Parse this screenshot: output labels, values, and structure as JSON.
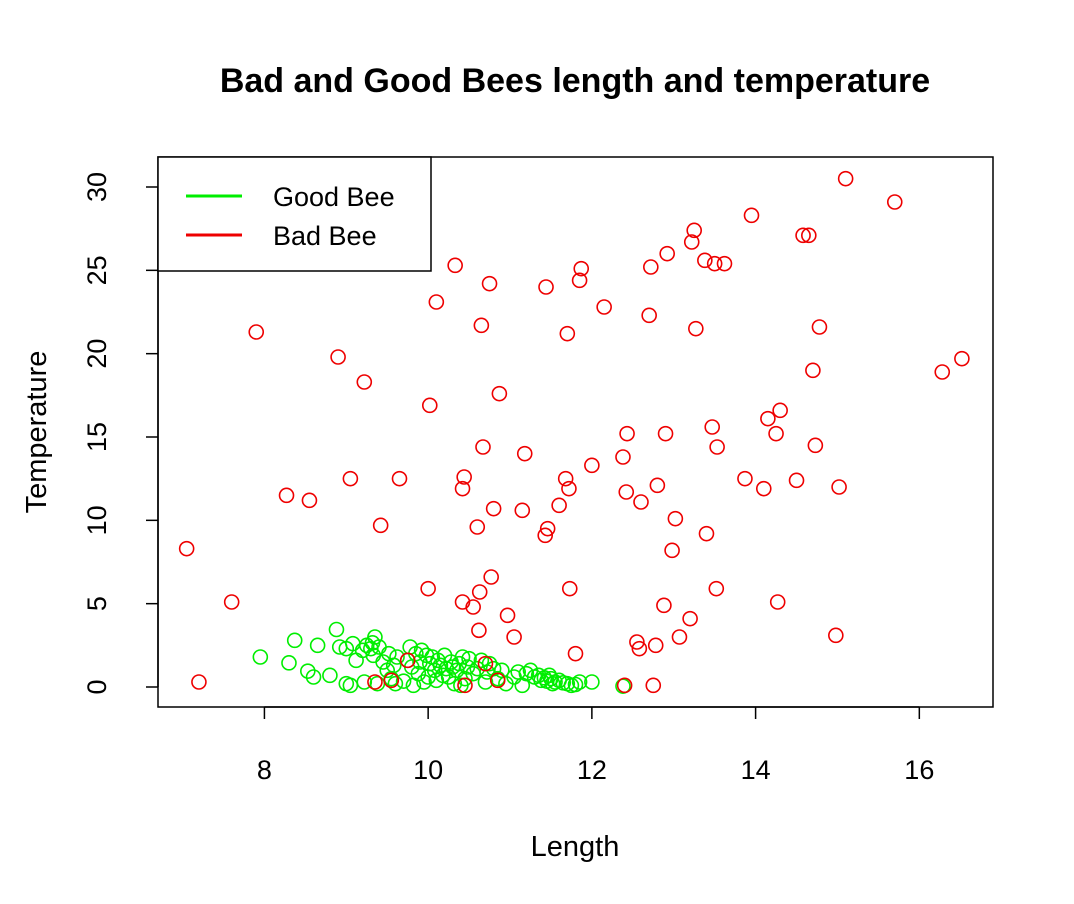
{
  "chart_data": {
    "type": "scatter",
    "title": "Bad and Good Bees length and temperature",
    "xlabel": "Length",
    "ylabel": "Temperature",
    "xlim": [
      6.7,
      16.9
    ],
    "ylim": [
      -1.2,
      31.8
    ],
    "xticks": [
      8,
      10,
      12,
      14,
      16
    ],
    "yticks": [
      0,
      5,
      10,
      15,
      20,
      25,
      30
    ],
    "grid": false,
    "legend_position": "top-left",
    "series": [
      {
        "name": "Good Bee",
        "color": "#00ee00",
        "points": [
          [
            7.95,
            1.8
          ],
          [
            8.3,
            1.45
          ],
          [
            8.37,
            2.8
          ],
          [
            8.53,
            0.95
          ],
          [
            8.6,
            0.6
          ],
          [
            8.65,
            2.5
          ],
          [
            8.8,
            0.7
          ],
          [
            8.88,
            3.45
          ],
          [
            8.92,
            2.4
          ],
          [
            9.0,
            2.3
          ],
          [
            9.0,
            0.2
          ],
          [
            9.05,
            0.1
          ],
          [
            9.08,
            2.6
          ],
          [
            9.12,
            1.6
          ],
          [
            9.2,
            2.2
          ],
          [
            9.22,
            0.3
          ],
          [
            9.25,
            2.5
          ],
          [
            9.3,
            2.3
          ],
          [
            9.32,
            2.65
          ],
          [
            9.33,
            1.9
          ],
          [
            9.35,
            3.0
          ],
          [
            9.38,
            0.2
          ],
          [
            9.4,
            2.4
          ],
          [
            9.45,
            1.5
          ],
          [
            9.5,
            1.0
          ],
          [
            9.52,
            2.0
          ],
          [
            9.55,
            0.5
          ],
          [
            9.58,
            1.3
          ],
          [
            9.6,
            0.2
          ],
          [
            9.62,
            1.8
          ],
          [
            9.7,
            0.35
          ],
          [
            9.75,
            1.6
          ],
          [
            9.78,
            2.4
          ],
          [
            9.8,
            1.2
          ],
          [
            9.82,
            0.1
          ],
          [
            9.85,
            2.0
          ],
          [
            9.88,
            0.8
          ],
          [
            9.9,
            1.5
          ],
          [
            9.92,
            2.2
          ],
          [
            9.95,
            0.3
          ],
          [
            9.98,
            1.9
          ],
          [
            10.0,
            0.6
          ],
          [
            10.02,
            1.4
          ],
          [
            10.05,
            1.8
          ],
          [
            10.08,
            1.0
          ],
          [
            10.1,
            0.4
          ],
          [
            10.12,
            1.6
          ],
          [
            10.15,
            1.3
          ],
          [
            10.18,
            0.7
          ],
          [
            10.2,
            1.9
          ],
          [
            10.22,
            1.1
          ],
          [
            10.25,
            0.6
          ],
          [
            10.28,
            1.5
          ],
          [
            10.3,
            1.2
          ],
          [
            10.32,
            0.2
          ],
          [
            10.35,
            1.0
          ],
          [
            10.38,
            1.4
          ],
          [
            10.4,
            0.1
          ],
          [
            10.42,
            1.8
          ],
          [
            10.45,
            0.5
          ],
          [
            10.48,
            1.2
          ],
          [
            10.5,
            1.7
          ],
          [
            10.55,
            0.8
          ],
          [
            10.6,
            1.1
          ],
          [
            10.65,
            1.6
          ],
          [
            10.7,
            0.3
          ],
          [
            10.72,
            0.9
          ],
          [
            10.75,
            1.4
          ],
          [
            10.8,
            1.1
          ],
          [
            10.85,
            0.5
          ],
          [
            10.9,
            1.0
          ],
          [
            10.95,
            0.2
          ],
          [
            11.05,
            0.6
          ],
          [
            11.1,
            0.9
          ],
          [
            11.15,
            0.1
          ],
          [
            11.2,
            0.8
          ],
          [
            11.25,
            1.0
          ],
          [
            11.3,
            0.6
          ],
          [
            11.35,
            0.7
          ],
          [
            11.38,
            0.4
          ],
          [
            11.42,
            0.55
          ],
          [
            11.45,
            0.35
          ],
          [
            11.48,
            0.7
          ],
          [
            11.5,
            0.5
          ],
          [
            11.52,
            0.2
          ],
          [
            11.55,
            0.3
          ],
          [
            11.6,
            0.4
          ],
          [
            11.65,
            0.25
          ],
          [
            11.7,
            0.2
          ],
          [
            11.75,
            0.1
          ],
          [
            11.8,
            0.15
          ],
          [
            11.85,
            0.3
          ],
          [
            12.0,
            0.3
          ],
          [
            12.38,
            0.05
          ]
        ]
      },
      {
        "name": "Bad Bee",
        "color": "#ee0000",
        "points": [
          [
            7.05,
            8.3
          ],
          [
            7.2,
            0.3
          ],
          [
            7.6,
            5.1
          ],
          [
            7.9,
            21.3
          ],
          [
            8.27,
            11.5
          ],
          [
            8.55,
            11.2
          ],
          [
            8.9,
            19.8
          ],
          [
            9.05,
            12.5
          ],
          [
            9.22,
            18.3
          ],
          [
            9.35,
            0.3
          ],
          [
            9.42,
            9.7
          ],
          [
            9.55,
            0.4
          ],
          [
            9.65,
            12.5
          ],
          [
            9.75,
            1.6
          ],
          [
            10.0,
            5.9
          ],
          [
            10.02,
            16.9
          ],
          [
            10.1,
            23.1
          ],
          [
            10.33,
            25.3
          ],
          [
            10.42,
            5.1
          ],
          [
            10.42,
            11.9
          ],
          [
            10.44,
            12.6
          ],
          [
            10.45,
            0.1
          ],
          [
            10.55,
            4.8
          ],
          [
            10.6,
            9.6
          ],
          [
            10.62,
            3.4
          ],
          [
            10.63,
            5.7
          ],
          [
            10.65,
            21.7
          ],
          [
            10.67,
            14.4
          ],
          [
            10.7,
            1.4
          ],
          [
            10.75,
            24.2
          ],
          [
            10.77,
            6.6
          ],
          [
            10.8,
            10.7
          ],
          [
            10.85,
            0.4
          ],
          [
            10.87,
            17.6
          ],
          [
            10.97,
            4.3
          ],
          [
            11.05,
            3.0
          ],
          [
            11.15,
            10.6
          ],
          [
            11.18,
            14.0
          ],
          [
            11.43,
            9.1
          ],
          [
            11.44,
            24.0
          ],
          [
            11.46,
            9.5
          ],
          [
            11.6,
            10.9
          ],
          [
            11.68,
            12.5
          ],
          [
            11.7,
            21.2
          ],
          [
            11.72,
            11.9
          ],
          [
            11.73,
            5.9
          ],
          [
            11.8,
            2.0
          ],
          [
            11.85,
            24.4
          ],
          [
            11.87,
            25.1
          ],
          [
            12.0,
            13.3
          ],
          [
            12.15,
            22.8
          ],
          [
            12.38,
            13.8
          ],
          [
            12.4,
            0.1
          ],
          [
            12.42,
            11.7
          ],
          [
            12.43,
            15.2
          ],
          [
            12.55,
            2.7
          ],
          [
            12.58,
            2.3
          ],
          [
            12.6,
            11.1
          ],
          [
            12.7,
            22.3
          ],
          [
            12.72,
            25.2
          ],
          [
            12.75,
            0.1
          ],
          [
            12.78,
            2.5
          ],
          [
            12.8,
            12.1
          ],
          [
            12.88,
            4.9
          ],
          [
            12.9,
            15.2
          ],
          [
            12.92,
            26.0
          ],
          [
            12.98,
            8.2
          ],
          [
            13.02,
            10.1
          ],
          [
            13.07,
            3.0
          ],
          [
            13.2,
            4.1
          ],
          [
            13.22,
            26.7
          ],
          [
            13.25,
            27.4
          ],
          [
            13.27,
            21.5
          ],
          [
            13.38,
            25.6
          ],
          [
            13.4,
            9.2
          ],
          [
            13.47,
            15.6
          ],
          [
            13.5,
            25.4
          ],
          [
            13.52,
            5.9
          ],
          [
            13.53,
            14.4
          ],
          [
            13.62,
            25.4
          ],
          [
            13.87,
            12.5
          ],
          [
            13.95,
            28.3
          ],
          [
            14.1,
            11.9
          ],
          [
            14.15,
            16.1
          ],
          [
            14.25,
            15.2
          ],
          [
            14.27,
            5.1
          ],
          [
            14.3,
            16.6
          ],
          [
            14.5,
            12.4
          ],
          [
            14.58,
            27.1
          ],
          [
            14.65,
            27.1
          ],
          [
            14.7,
            19.0
          ],
          [
            14.73,
            14.5
          ],
          [
            14.78,
            21.6
          ],
          [
            14.98,
            3.1
          ],
          [
            15.02,
            12.0
          ],
          [
            15.1,
            30.5
          ],
          [
            15.7,
            29.1
          ],
          [
            16.28,
            18.9
          ],
          [
            16.52,
            19.7
          ]
        ]
      }
    ]
  }
}
